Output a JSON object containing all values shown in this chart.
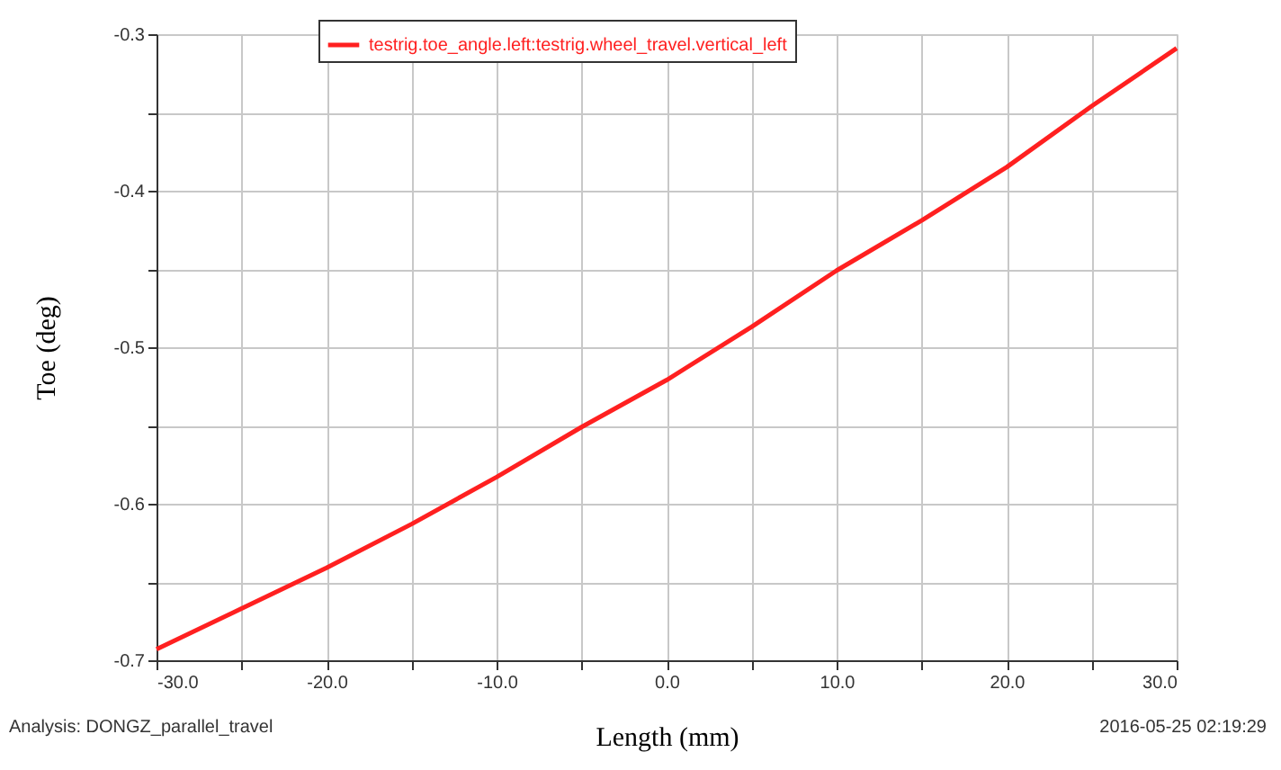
{
  "chart_data": {
    "type": "line",
    "xlabel": "Length (mm)",
    "ylabel": "Toe (deg)",
    "x": [
      -30,
      -25,
      -20,
      -15,
      -10,
      -5,
      0,
      5,
      10,
      15,
      20,
      25,
      30
    ],
    "series": [
      {
        "name": "testrig.toe_angle.left:testrig.wheel_travel.vertical_left",
        "color": "#ff2020",
        "values": [
          -0.693,
          -0.667,
          -0.641,
          -0.613,
          -0.583,
          -0.551,
          -0.521,
          -0.487,
          -0.451,
          -0.419,
          -0.385,
          -0.346,
          -0.309
        ]
      }
    ],
    "xlim": [
      -30,
      30
    ],
    "ylim": [
      -0.7,
      -0.3
    ],
    "xticks": [
      {
        "value": -30,
        "label": "-30.0"
      },
      {
        "value": -25,
        "label": null
      },
      {
        "value": -20,
        "label": "-20.0"
      },
      {
        "value": -15,
        "label": null
      },
      {
        "value": -10,
        "label": "-10.0"
      },
      {
        "value": -5,
        "label": null
      },
      {
        "value": 0,
        "label": "0.0"
      },
      {
        "value": 5,
        "label": null
      },
      {
        "value": 10,
        "label": "10.0"
      },
      {
        "value": 15,
        "label": null
      },
      {
        "value": 20,
        "label": "20.0"
      },
      {
        "value": 25,
        "label": null
      },
      {
        "value": 30,
        "label": "30.0"
      }
    ],
    "yticks": [
      -0.7,
      {
        "value": -0.65,
        "label": null
      },
      -0.6,
      {
        "value": -0.55,
        "label": null
      },
      -0.5,
      {
        "value": -0.45,
        "label": null
      },
      -0.4,
      {
        "value": -0.35,
        "label": null
      },
      -0.3
    ],
    "grid": true,
    "legend": "top",
    "line_style": "solid",
    "annotations": [
      "Analysis:  DONGZ_parallel_travel",
      "2016-05-25 02:19:29"
    ]
  }
}
